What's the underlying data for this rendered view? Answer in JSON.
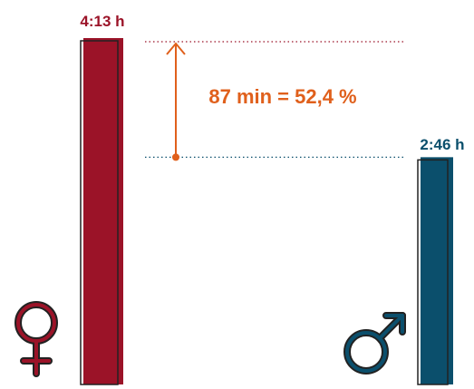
{
  "chart_data": {
    "type": "bar",
    "categories": [
      "♀",
      "♂"
    ],
    "values_minutes": [
      253,
      166
    ],
    "value_labels": [
      "4:13 h",
      "2:46 h"
    ],
    "difference_label": "87 min = 52,4 %",
    "ylim": [
      0,
      253
    ],
    "grid": false,
    "colors": {
      "female": "#9b1328",
      "male": "#0b4f6c",
      "difference": "#e0601c",
      "outline": "#222222"
    },
    "icons": [
      "female-symbol-icon",
      "male-symbol-icon"
    ]
  }
}
